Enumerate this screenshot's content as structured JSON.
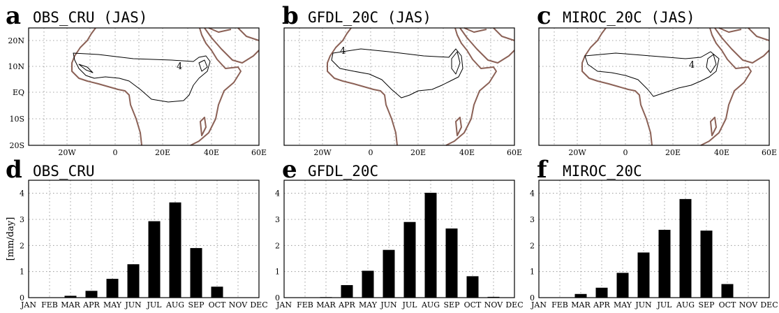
{
  "colors": {
    "coastline": "#8b6156",
    "bar": "#000000",
    "grid": "#888888"
  },
  "map_axes": {
    "x_ticks": [
      "20W",
      "0",
      "20E",
      "40E",
      "60E"
    ],
    "y_ticks": [
      "20N",
      "10N",
      "EQ",
      "10S",
      "20S"
    ],
    "grid": true
  },
  "maps": [
    {
      "letter": "a",
      "title": "OBS_CRU (JAS)",
      "contour_label": "4"
    },
    {
      "letter": "b",
      "title": "GFDL_20C (JAS)",
      "contour_label": "4"
    },
    {
      "letter": "c",
      "title": "MIROC_20C (JAS)",
      "contour_label": "4"
    }
  ],
  "chart_data": [
    {
      "type": "bar",
      "letter": "d",
      "title": "OBS_CRU",
      "ylabel": "[mm/day]",
      "categories": [
        "JAN",
        "FEB",
        "MAR",
        "APR",
        "MAY",
        "JUN",
        "JUL",
        "AUG",
        "SEP",
        "OCT",
        "NOV",
        "DEC"
      ],
      "values": [
        0,
        0,
        0.07,
        0.26,
        0.72,
        1.28,
        2.93,
        3.65,
        1.9,
        0.42,
        0,
        0
      ],
      "yticks": [
        "0",
        "1",
        "2",
        "3",
        "4"
      ],
      "ylim": [
        0,
        4.5
      ],
      "grid": true
    },
    {
      "type": "bar",
      "letter": "e",
      "title": "GFDL_20C",
      "ylabel": "",
      "categories": [
        "JAN",
        "FEB",
        "MAR",
        "APR",
        "MAY",
        "JUN",
        "JUL",
        "AUG",
        "SEP",
        "OCT",
        "NOV",
        "DEC"
      ],
      "values": [
        0,
        0,
        0.02,
        0.48,
        1.03,
        1.83,
        2.9,
        4.02,
        2.65,
        0.82,
        0.03,
        0
      ],
      "yticks": [
        "0",
        "1",
        "2",
        "3",
        "4"
      ],
      "ylim": [
        0,
        4.5
      ],
      "grid": true
    },
    {
      "type": "bar",
      "letter": "f",
      "title": "MIROC_20C",
      "ylabel": "",
      "categories": [
        "JAN",
        "FEB",
        "MAR",
        "APR",
        "MAY",
        "JUN",
        "JUL",
        "AUG",
        "SEP",
        "OCT",
        "NOV",
        "DEC"
      ],
      "values": [
        0,
        0,
        0.14,
        0.38,
        0.95,
        1.73,
        2.6,
        3.78,
        2.57,
        0.52,
        0,
        0
      ],
      "yticks": [
        "0",
        "1",
        "2",
        "3",
        "4"
      ],
      "ylim": [
        0,
        4.5
      ],
      "grid": true
    }
  ]
}
